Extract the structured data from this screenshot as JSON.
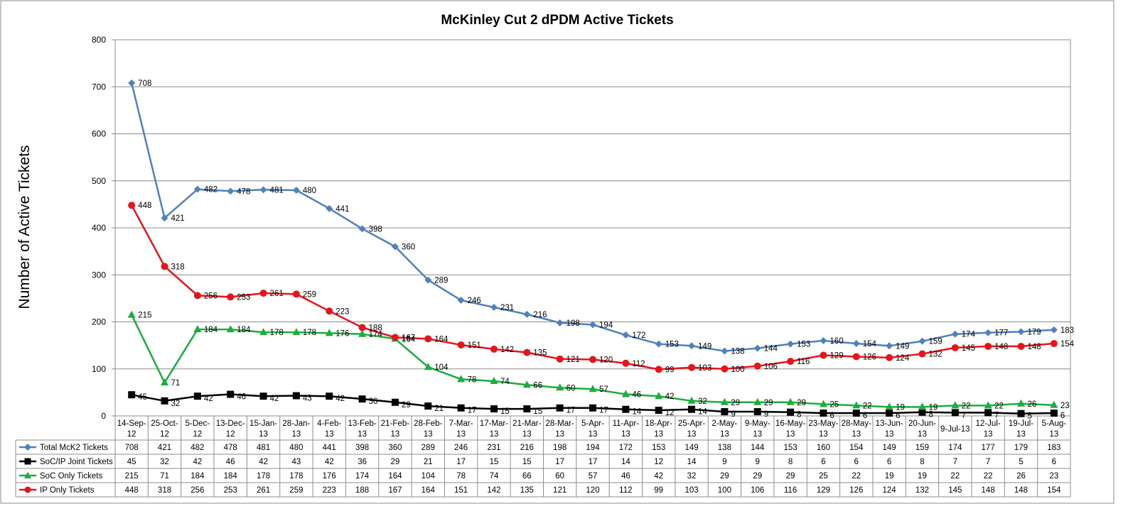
{
  "chart_data": {
    "type": "line",
    "title": "McKinley Cut 2 dPDM Active Tickets",
    "ylabel": "Number of Active Tickets",
    "xlabel": "",
    "ylim": [
      0,
      800
    ],
    "yticks": [
      0,
      100,
      200,
      300,
      400,
      500,
      600,
      700,
      800
    ],
    "grid": true,
    "legend_placement": "data-table-left",
    "categories": [
      [
        "14-Sep-",
        "12"
      ],
      [
        "25-Oct-",
        "12"
      ],
      [
        "5-Dec-",
        "12"
      ],
      [
        "13-Dec-",
        "12"
      ],
      [
        "15-Jan-",
        "13"
      ],
      [
        "28-Jan-",
        "13"
      ],
      [
        "4-Feb-",
        "13"
      ],
      [
        "13-Feb-",
        "13"
      ],
      [
        "21-Feb-",
        "13"
      ],
      [
        "28-Feb-",
        "13"
      ],
      [
        "7-Mar-",
        "13"
      ],
      [
        "17-Mar-",
        "13"
      ],
      [
        "21-Mar-",
        "13"
      ],
      [
        "28-Mar-",
        "13"
      ],
      [
        "5-Apr-",
        "13"
      ],
      [
        "11-Apr-",
        "13"
      ],
      [
        "18-Apr-",
        "13"
      ],
      [
        "25-Apr-",
        "13"
      ],
      [
        "2-May-",
        "13"
      ],
      [
        "9-May-",
        "13"
      ],
      [
        "16-May-",
        "13"
      ],
      [
        "23-May-",
        "13"
      ],
      [
        "28-May-",
        "13"
      ],
      [
        "13-Jun-",
        "13"
      ],
      [
        "20-Jun-",
        "13"
      ],
      [
        "9-Jul-13"
      ],
      [
        "12-Jul-",
        "13"
      ],
      [
        "19-Jul-",
        "13"
      ],
      [
        "5-Aug-",
        "13"
      ]
    ],
    "series": [
      {
        "name": "Total McK2 Tickets",
        "color": "#4F81BD",
        "marker": "diamond",
        "values": [
          708,
          421,
          482,
          478,
          481,
          480,
          441,
          398,
          360,
          289,
          246,
          231,
          216,
          198,
          194,
          172,
          153,
          149,
          138,
          144,
          153,
          160,
          154,
          149,
          159,
          174,
          177,
          179,
          183
        ]
      },
      {
        "name": "SoC/IP Joint Tickets",
        "color": "#000000",
        "marker": "square",
        "values": [
          45,
          32,
          42,
          46,
          42,
          43,
          42,
          36,
          29,
          21,
          17,
          15,
          15,
          17,
          17,
          14,
          12,
          14,
          9,
          9,
          8,
          6,
          6,
          6,
          8,
          7,
          7,
          5,
          6
        ]
      },
      {
        "name": "SoC Only Tickets",
        "color": "#1AAF3C",
        "marker": "triangle",
        "values": [
          215,
          71,
          184,
          184,
          178,
          178,
          176,
          174,
          164,
          104,
          78,
          74,
          66,
          60,
          57,
          46,
          42,
          32,
          29,
          29,
          29,
          25,
          22,
          19,
          19,
          22,
          22,
          26,
          23
        ]
      },
      {
        "name": "IP Only Tickets",
        "color": "#E8141B",
        "marker": "circle",
        "values": [
          448,
          318,
          256,
          253,
          261,
          259,
          223,
          188,
          167,
          164,
          151,
          142,
          135,
          121,
          120,
          112,
          99,
          103,
          100,
          106,
          116,
          129,
          126,
          124,
          132,
          145,
          148,
          148,
          154
        ]
      }
    ]
  }
}
